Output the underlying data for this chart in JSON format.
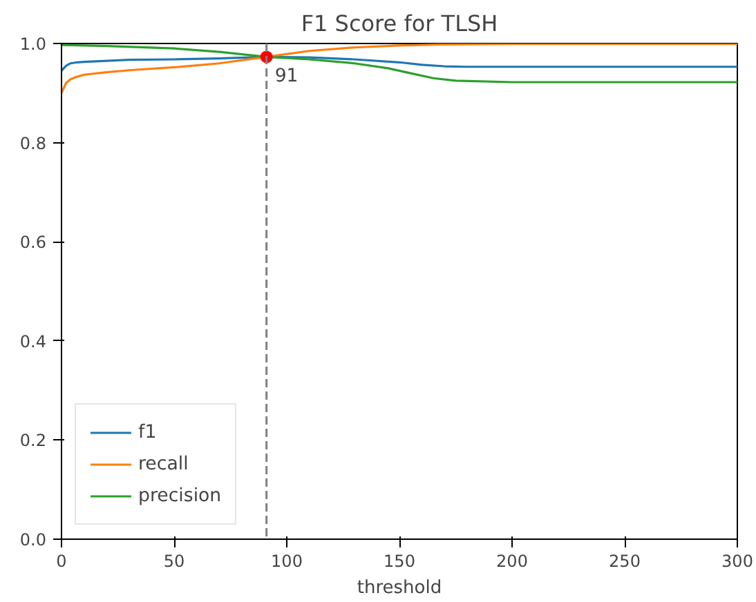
{
  "chart_data": {
    "type": "line",
    "title": "F1 Score for TLSH",
    "xlabel": "threshold",
    "xlim": [
      0,
      300
    ],
    "ylim": [
      0,
      1
    ],
    "xticks": [
      0,
      50,
      100,
      150,
      200,
      250,
      300
    ],
    "yticks": [
      {
        "value": 0,
        "label": "0.0"
      },
      0.2,
      0.4,
      0.6,
      0.8,
      {
        "value": 1,
        "label": "1.0"
      }
    ],
    "grid": false,
    "legend": "bottom left",
    "line_style": "solid",
    "marker": "none",
    "series": [
      {
        "name": "f1",
        "color": "#1f77b4",
        "x": [
          0,
          1,
          2,
          4,
          7,
          10,
          20,
          30,
          50,
          70,
          91,
          110,
          130,
          150,
          160,
          170,
          180,
          200,
          250,
          300
        ],
        "values": [
          0.945,
          0.95,
          0.955,
          0.96,
          0.962,
          0.963,
          0.965,
          0.967,
          0.968,
          0.97,
          0.973,
          0.972,
          0.968,
          0.962,
          0.957,
          0.954,
          0.953,
          0.953,
          0.953,
          0.953
        ]
      },
      {
        "name": "recall",
        "color": "#ff7f0e",
        "x": [
          0,
          1,
          2,
          4,
          7,
          10,
          20,
          30,
          50,
          70,
          91,
          110,
          130,
          150,
          170,
          200,
          250,
          300
        ],
        "values": [
          0.9,
          0.91,
          0.92,
          0.928,
          0.933,
          0.937,
          0.942,
          0.946,
          0.952,
          0.96,
          0.973,
          0.985,
          0.992,
          0.996,
          0.998,
          0.999,
          0.999,
          0.999
        ]
      },
      {
        "name": "precision",
        "color": "#2ca02c",
        "x": [
          0,
          20,
          50,
          70,
          91,
          110,
          130,
          145,
          155,
          165,
          175,
          200,
          250,
          300
        ],
        "values": [
          0.997,
          0.995,
          0.99,
          0.983,
          0.973,
          0.968,
          0.96,
          0.95,
          0.94,
          0.93,
          0.925,
          0.922,
          0.922,
          0.922
        ]
      },
      {
        "type": "scatter",
        "marker": "circle",
        "color": "#ff0000",
        "x": [
          91
        ],
        "values": [
          0.973
        ]
      }
    ],
    "ref_lines": [
      {
        "axis": "x",
        "value": 91,
        "color": "#808080",
        "line_style": "dashed"
      }
    ],
    "annotations": [
      {
        "text": "91",
        "x": 91,
        "y": 0.973
      }
    ]
  }
}
